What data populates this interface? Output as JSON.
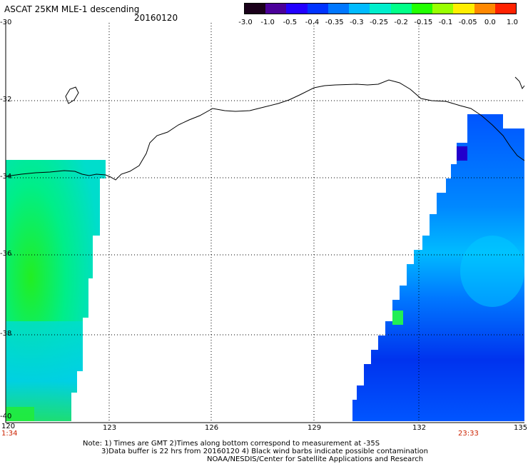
{
  "header": {
    "title": "ASCAT 25KM MLE-1 descending",
    "date": "20160120"
  },
  "colorbar": {
    "labels": [
      "-3.0",
      "-1.0",
      "-0.5",
      "-0.4",
      "-0.35",
      "-0.3",
      "-0.25",
      "-0.2",
      "-0.15",
      "-0.1",
      "-0.05",
      "0.0",
      "1.0"
    ],
    "colors": [
      "#1a001a",
      "#4a0099",
      "#2200ff",
      "#0033ff",
      "#0077ff",
      "#00bbff",
      "#00eecc",
      "#00ff88",
      "#22ff00",
      "#99ff00",
      "#ffee00",
      "#ff8800",
      "#ff2200"
    ]
  },
  "map": {
    "lat_labels": [
      "-30",
      "-32",
      "-34",
      "-36",
      "-38",
      "-40"
    ],
    "lon_labels": [
      "120",
      "123",
      "126",
      "129",
      "132",
      "135"
    ],
    "time_left": "1:34",
    "time_right": "23:33",
    "colors": {
      "swath_left": "#00ee88",
      "swath_right": "#0044ff",
      "coast": "#000000",
      "grid": "#000000"
    }
  },
  "notes": {
    "line1": "Note: 1) Times are GMT 2)Times along bottom correspond to measurement at -35S",
    "line2": "3)Data buffer is 22 hrs from 20160120 4) Black wind barbs indicate possible contamination",
    "line3": "NOAA/NESDIS/Center for Satellite Applications and Research"
  }
}
